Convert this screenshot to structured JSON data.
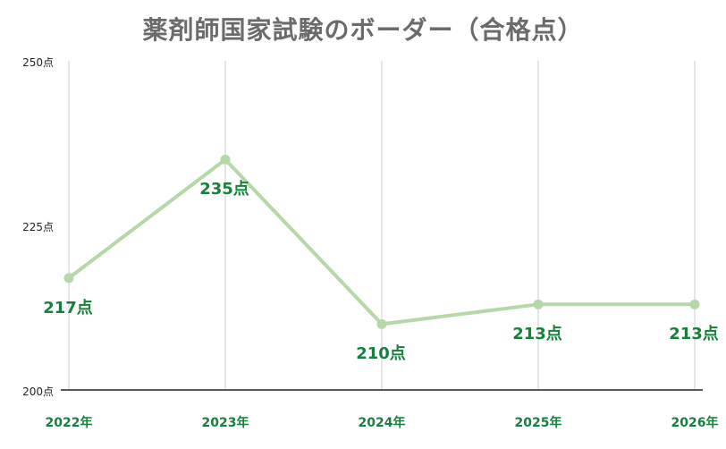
{
  "chart_data": {
    "type": "line",
    "title": "薬剤師国家試験のボーダー（合格点）",
    "xlabel": "",
    "ylabel": "",
    "categories": [
      "2022年",
      "2023年",
      "2024年",
      "2025年",
      "2026年"
    ],
    "series": [
      {
        "name": "ボーダー（合格点）",
        "values": [
          217,
          235,
          210,
          213,
          213
        ],
        "color": "#b6d7a8"
      }
    ],
    "data_labels": [
      "217点",
      "235点",
      "210点",
      "213点",
      "213点"
    ],
    "y_ticks": [
      "200点",
      "225点",
      "250点"
    ],
    "ylim": [
      200,
      250
    ],
    "grid": "vertical",
    "legend": "none",
    "label_color": "#17803d"
  }
}
